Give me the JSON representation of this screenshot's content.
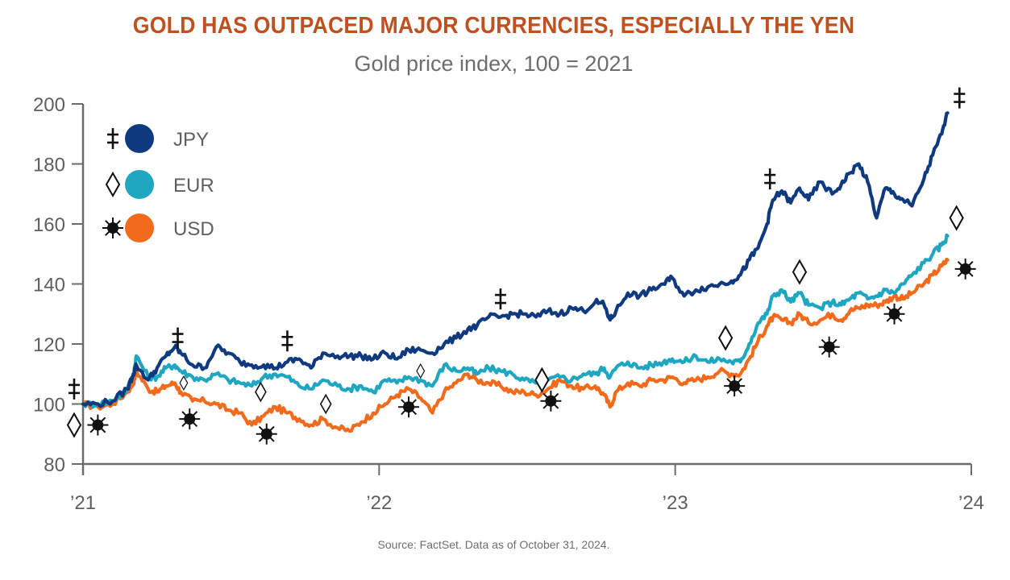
{
  "title": "GOLD HAS OUTPACED MAJOR CURRENCIES, ESPECIALLY THE YEN",
  "subtitle": "Gold price index, 100 = 2021",
  "source": "Source: FactSet. Data as of October 31, 2024.",
  "colors": {
    "title": "#c0501f",
    "JPY": "#0f3a80",
    "EUR": "#1fa6c0",
    "USD": "#f26a1b",
    "axis": "#6b6b6b"
  },
  "chart_data": {
    "type": "line",
    "title": "GOLD HAS OUTPACED MAJOR CURRENCIES, ESPECIALLY THE YEN",
    "subtitle": "Gold price index, 100 = 2021",
    "xlabel": "",
    "ylabel": "",
    "ylim": [
      80,
      200
    ],
    "xlim": [
      2021,
      2024
    ],
    "yticks": [
      80,
      100,
      120,
      140,
      160,
      180,
      200
    ],
    "xticks": [
      {
        "value": 2021,
        "label": "’21"
      },
      {
        "value": 2022,
        "label": "’22"
      },
      {
        "value": 2023,
        "label": "’23"
      },
      {
        "value": 2024,
        "label": "’24"
      }
    ],
    "grid": false,
    "legend_position": "top-left",
    "series": [
      {
        "name": "JPY",
        "marker": "double-dagger",
        "x": [
          2021.0,
          2021.05,
          2021.1,
          2021.15,
          2021.17,
          2021.18,
          2021.22,
          2021.25,
          2021.28,
          2021.31,
          2021.33,
          2021.37,
          2021.41,
          2021.45,
          2021.49,
          2021.53,
          2021.57,
          2021.61,
          2021.65,
          2021.69,
          2021.73,
          2021.77,
          2021.81,
          2021.86,
          2021.9,
          2021.94,
          2021.98,
          2022.02,
          2022.06,
          2022.1,
          2022.14,
          2022.18,
          2022.22,
          2022.26,
          2022.3,
          2022.33,
          2022.37,
          2022.41,
          2022.45,
          2022.49,
          2022.53,
          2022.57,
          2022.61,
          2022.65,
          2022.69,
          2022.73,
          2022.76,
          2022.78,
          2022.8,
          2022.84,
          2022.88,
          2022.92,
          2022.96,
          2022.99,
          2023.03,
          2023.07,
          2023.11,
          2023.15,
          2023.19,
          2023.22,
          2023.25,
          2023.28,
          2023.31,
          2023.33,
          2023.36,
          2023.39,
          2023.42,
          2023.45,
          2023.49,
          2023.53,
          2023.56,
          2023.59,
          2023.62,
          2023.65,
          2023.68,
          2023.71,
          2023.74,
          2023.77,
          2023.8,
          2023.84,
          2023.87,
          2023.9,
          2023.92
        ],
        "values": [
          100,
          100,
          101,
          105,
          110,
          113,
          108,
          112,
          116,
          119,
          117,
          113,
          112,
          119,
          117,
          114,
          113,
          113,
          112,
          114,
          115,
          112,
          117,
          116,
          116,
          116,
          115,
          117,
          115,
          118,
          118,
          117,
          120,
          122,
          125,
          126,
          129,
          129,
          130,
          130,
          129,
          131,
          130,
          132,
          131,
          134,
          133,
          128,
          131,
          137,
          136,
          138,
          140,
          142,
          136,
          138,
          139,
          140,
          141,
          143,
          148,
          152,
          160,
          168,
          171,
          167,
          172,
          168,
          174,
          170,
          173,
          177,
          180,
          174,
          162,
          172,
          170,
          168,
          166,
          175,
          183,
          190,
          197
        ]
      },
      {
        "name": "EUR",
        "marker": "diamond",
        "x": [
          2021.0,
          2021.05,
          2021.1,
          2021.15,
          2021.17,
          2021.18,
          2021.22,
          2021.25,
          2021.28,
          2021.31,
          2021.33,
          2021.37,
          2021.41,
          2021.45,
          2021.49,
          2021.53,
          2021.57,
          2021.61,
          2021.65,
          2021.69,
          2021.73,
          2021.77,
          2021.81,
          2021.86,
          2021.9,
          2021.94,
          2021.98,
          2022.02,
          2022.06,
          2022.1,
          2022.14,
          2022.18,
          2022.22,
          2022.26,
          2022.3,
          2022.33,
          2022.37,
          2022.41,
          2022.45,
          2022.49,
          2022.53,
          2022.57,
          2022.61,
          2022.65,
          2022.69,
          2022.73,
          2022.76,
          2022.78,
          2022.8,
          2022.84,
          2022.88,
          2022.92,
          2022.96,
          2022.99,
          2023.03,
          2023.07,
          2023.11,
          2023.15,
          2023.19,
          2023.22,
          2023.25,
          2023.28,
          2023.31,
          2023.33,
          2023.36,
          2023.39,
          2023.42,
          2023.45,
          2023.49,
          2023.53,
          2023.56,
          2023.59,
          2023.62,
          2023.65,
          2023.68,
          2023.71,
          2023.74,
          2023.77,
          2023.8,
          2023.84,
          2023.87,
          2023.9,
          2023.92
        ],
        "values": [
          100,
          100,
          101,
          105,
          110,
          116,
          109,
          109,
          112,
          113,
          111,
          109,
          108,
          110,
          108,
          107,
          106,
          109,
          110,
          109,
          106,
          105,
          108,
          106,
          105,
          106,
          104,
          108,
          107,
          109,
          108,
          106,
          113,
          111,
          112,
          110,
          112,
          111,
          110,
          108,
          107,
          108,
          109,
          108,
          110,
          110,
          112,
          109,
          112,
          114,
          112,
          113,
          114,
          115,
          114,
          116,
          114,
          115,
          114,
          114,
          120,
          127,
          130,
          136,
          138,
          134,
          137,
          133,
          132,
          134,
          133,
          135,
          137,
          135,
          136,
          138,
          137,
          140,
          143,
          147,
          150,
          153,
          156
        ]
      },
      {
        "name": "USD",
        "marker": "sun",
        "x": [
          2021.0,
          2021.05,
          2021.1,
          2021.15,
          2021.17,
          2021.18,
          2021.22,
          2021.25,
          2021.28,
          2021.31,
          2021.33,
          2021.37,
          2021.41,
          2021.45,
          2021.49,
          2021.53,
          2021.57,
          2021.61,
          2021.65,
          2021.69,
          2021.73,
          2021.77,
          2021.81,
          2021.86,
          2021.9,
          2021.94,
          2021.98,
          2022.02,
          2022.06,
          2022.1,
          2022.14,
          2022.18,
          2022.22,
          2022.26,
          2022.3,
          2022.33,
          2022.37,
          2022.41,
          2022.45,
          2022.49,
          2022.53,
          2022.57,
          2022.61,
          2022.65,
          2022.69,
          2022.73,
          2022.76,
          2022.78,
          2022.8,
          2022.84,
          2022.88,
          2022.92,
          2022.96,
          2022.99,
          2023.03,
          2023.07,
          2023.11,
          2023.15,
          2023.19,
          2023.22,
          2023.25,
          2023.28,
          2023.31,
          2023.33,
          2023.36,
          2023.39,
          2023.42,
          2023.45,
          2023.49,
          2023.53,
          2023.56,
          2023.59,
          2023.62,
          2023.65,
          2023.68,
          2023.71,
          2023.74,
          2023.77,
          2023.8,
          2023.84,
          2023.87,
          2023.9,
          2023.92
        ],
        "values": [
          100,
          99,
          100,
          104,
          107,
          111,
          105,
          104,
          106,
          107,
          104,
          101,
          101,
          100,
          98,
          97,
          93,
          96,
          99,
          97,
          95,
          93,
          95,
          92,
          91,
          94,
          97,
          100,
          103,
          105,
          102,
          97,
          104,
          107,
          110,
          108,
          107,
          106,
          104,
          104,
          103,
          105,
          108,
          106,
          105,
          106,
          103,
          99,
          104,
          107,
          106,
          108,
          108,
          109,
          107,
          108,
          109,
          111,
          110,
          110,
          115,
          121,
          126,
          129,
          128,
          127,
          130,
          127,
          128,
          130,
          128,
          131,
          132,
          133,
          133,
          134,
          136,
          135,
          137,
          140,
          143,
          146,
          148
        ]
      }
    ],
    "annotations": [
      {
        "series": "JPY",
        "marker": "double-dagger",
        "points": [
          [
            2020.97,
            105
          ],
          [
            2021.32,
            122
          ],
          [
            2021.69,
            121
          ],
          [
            2022.41,
            135
          ],
          [
            2023.32,
            175
          ],
          [
            2023.96,
            202
          ]
        ]
      },
      {
        "series": "EUR",
        "marker": "diamond",
        "points": [
          [
            2020.97,
            93
          ],
          [
            2021.34,
            107
          ],
          [
            2021.6,
            104
          ],
          [
            2021.82,
            100
          ],
          [
            2022.14,
            111
          ],
          [
            2022.55,
            108
          ],
          [
            2023.17,
            122
          ],
          [
            2023.42,
            144
          ],
          [
            2023.95,
            162
          ]
        ]
      },
      {
        "series": "USD",
        "marker": "sun",
        "points": [
          [
            2021.05,
            93
          ],
          [
            2021.36,
            95
          ],
          [
            2021.62,
            90
          ],
          [
            2022.1,
            99
          ],
          [
            2022.58,
            101
          ],
          [
            2023.2,
            106
          ],
          [
            2023.52,
            119
          ],
          [
            2023.74,
            130
          ],
          [
            2023.98,
            145
          ]
        ]
      }
    ]
  },
  "legend": [
    {
      "label": "JPY",
      "marker": "double-dagger"
    },
    {
      "label": "EUR",
      "marker": "diamond"
    },
    {
      "label": "USD",
      "marker": "sun"
    }
  ]
}
